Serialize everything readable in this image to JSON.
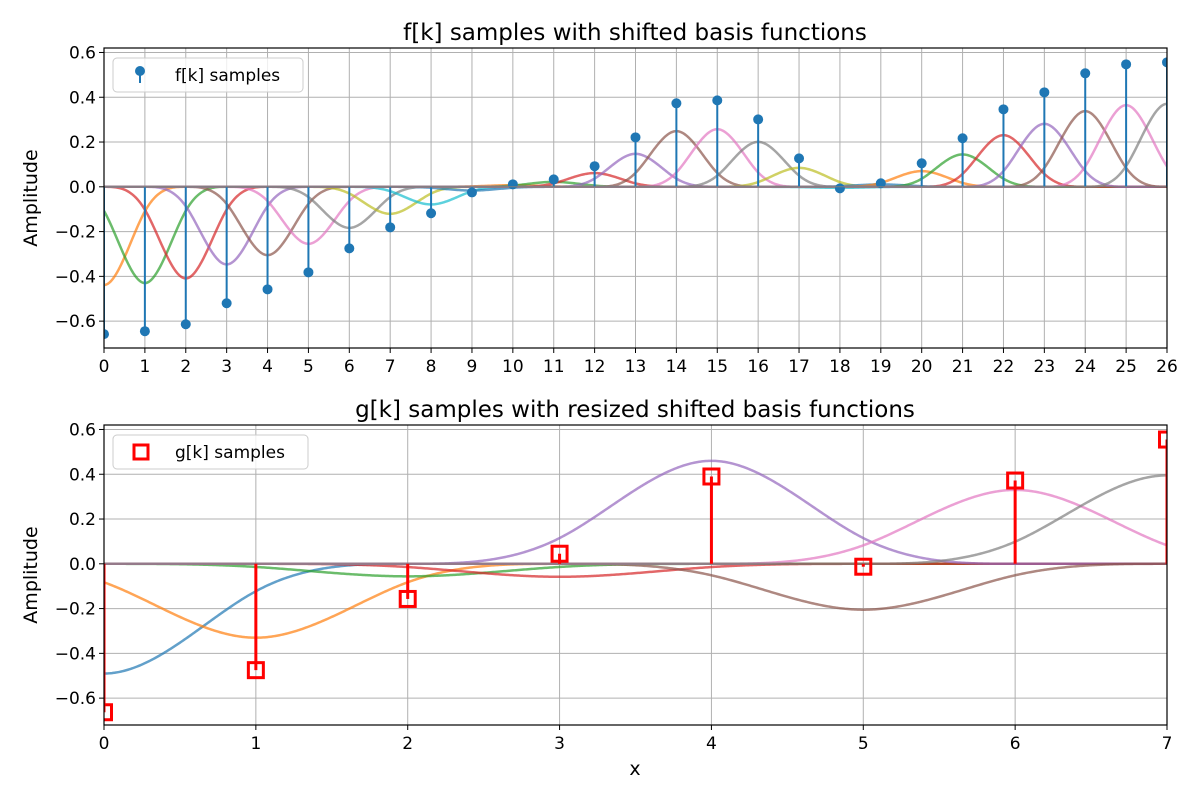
{
  "chart_data": [
    {
      "type": "line",
      "title": "f[k] samples with shifted basis functions",
      "xlabel": "",
      "ylabel": "Amplitude",
      "xlim": [
        0,
        26
      ],
      "ylim": [
        -0.72,
        0.62
      ],
      "grid": true,
      "xticks": [
        0,
        1,
        2,
        3,
        4,
        5,
        6,
        7,
        8,
        9,
        10,
        11,
        12,
        13,
        14,
        15,
        16,
        17,
        18,
        19,
        20,
        21,
        22,
        23,
        24,
        25,
        26
      ],
      "yticks": [
        -0.6,
        -0.4,
        -0.2,
        0.0,
        0.2,
        0.4,
        0.6
      ],
      "ytick_labels": [
        "−0.6",
        "−0.4",
        "−0.2",
        "0.0",
        "0.2",
        "0.4",
        "0.6"
      ],
      "legend": {
        "position": "top-left",
        "entries": [
          "f[k] samples"
        ]
      },
      "samples": {
        "name": "f[k] samples",
        "style": "stem",
        "color": "#1f77b4",
        "x": [
          0,
          1,
          2,
          3,
          4,
          5,
          6,
          7,
          8,
          9,
          10,
          11,
          12,
          13,
          14,
          15,
          16,
          17,
          18,
          19,
          20,
          21,
          22,
          23,
          24,
          25,
          26
        ],
        "y": [
          -0.658,
          -0.645,
          -0.614,
          -0.52,
          -0.458,
          -0.382,
          -0.275,
          -0.181,
          -0.118,
          -0.025,
          0.011,
          0.033,
          0.092,
          0.221,
          0.373,
          0.386,
          0.301,
          0.127,
          -0.007,
          0.016,
          0.105,
          0.217,
          0.346,
          0.422,
          0.507,
          0.547,
          0.556
        ]
      },
      "basis": {
        "kind": "cubic-bspline",
        "centers_from_samples": true,
        "color_offset": 1
      }
    },
    {
      "type": "line",
      "title": "g[k] samples with resized shifted basis functions",
      "xlabel": "x",
      "ylabel": "Amplitude",
      "xlim": [
        0,
        7
      ],
      "ylim": [
        -0.72,
        0.62
      ],
      "grid": true,
      "xticks": [
        0,
        1,
        2,
        3,
        4,
        5,
        6,
        7
      ],
      "yticks": [
        -0.6,
        -0.4,
        -0.2,
        0.0,
        0.2,
        0.4,
        0.6
      ],
      "ytick_labels": [
        "−0.6",
        "−0.4",
        "−0.2",
        "0.0",
        "0.2",
        "0.4",
        "0.6"
      ],
      "legend": {
        "position": "top-left",
        "entries": [
          "g[k] samples"
        ]
      },
      "samples": {
        "name": "g[k] samples",
        "style": "stem-square",
        "color": "#ff0000",
        "x": [
          0,
          1,
          2,
          3,
          4,
          5,
          6,
          7
        ],
        "y": [
          -0.663,
          -0.475,
          -0.157,
          0.045,
          0.39,
          -0.013,
          0.372,
          0.555
        ]
      },
      "basis": {
        "kind": "cubic-bspline",
        "centers": [
          0,
          1,
          2,
          3,
          4,
          5,
          6,
          7
        ],
        "peaks": [
          -0.49,
          -0.33,
          -0.056,
          -0.058,
          0.46,
          -0.205,
          0.33,
          0.395
        ],
        "color_offset": 0
      }
    }
  ],
  "palette": [
    "#1f77b4",
    "#ff7f0e",
    "#2ca02c",
    "#d62728",
    "#9467bd",
    "#8c564b",
    "#e377c2",
    "#7f7f7f",
    "#bcbd22",
    "#17becf"
  ]
}
